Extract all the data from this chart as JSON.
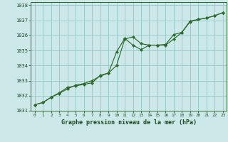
{
  "title": "Graphe pression niveau de la mer (hPa)",
  "x_hours": [
    0,
    1,
    2,
    3,
    4,
    5,
    6,
    7,
    8,
    9,
    10,
    11,
    12,
    13,
    14,
    15,
    16,
    17,
    18,
    19,
    20,
    21,
    22,
    23
  ],
  "series1": [
    1031.4,
    1031.55,
    1031.9,
    1032.15,
    1032.45,
    1032.7,
    1032.8,
    1033.0,
    1033.3,
    1033.5,
    1034.0,
    1035.75,
    1035.9,
    1035.45,
    1035.35,
    1035.35,
    1035.4,
    1036.05,
    1036.2,
    1036.9,
    1037.05,
    1037.15,
    1037.3,
    1037.5
  ],
  "series2": [
    1031.4,
    1031.55,
    1031.9,
    1032.2,
    1032.55,
    1032.65,
    1032.75,
    1032.85,
    1033.35,
    1033.5,
    1034.9,
    1035.8,
    1035.35,
    1035.05,
    1035.35,
    1035.35,
    1035.35,
    1035.75,
    1036.2,
    1036.95,
    1037.05,
    1037.15,
    1037.3,
    1037.5
  ],
  "ylim": [
    1031.0,
    1038.2
  ],
  "yticks": [
    1031,
    1032,
    1033,
    1034,
    1035,
    1036,
    1037,
    1038
  ],
  "xticks": [
    0,
    1,
    2,
    3,
    4,
    5,
    6,
    7,
    8,
    9,
    10,
    11,
    12,
    13,
    14,
    15,
    16,
    17,
    18,
    19,
    20,
    21,
    22,
    23
  ],
  "line_color": "#2d6a2d",
  "marker_color": "#2d6a2d",
  "bg_color": "#cce8e8",
  "grid_color": "#99cccc",
  "title_color": "#1a4a1a",
  "axis_color": "#2d6a2d",
  "tick_color": "#1a4a1a"
}
